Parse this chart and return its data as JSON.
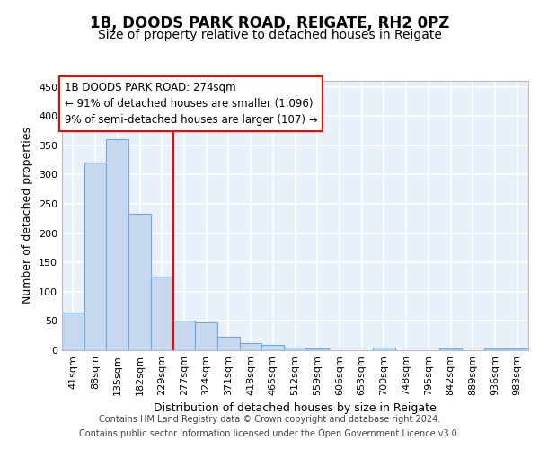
{
  "title_line1": "1B, DOODS PARK ROAD, REIGATE, RH2 0PZ",
  "title_line2": "Size of property relative to detached houses in Reigate",
  "xlabel": "Distribution of detached houses by size in Reigate",
  "ylabel": "Number of detached properties",
  "categories": [
    "41sqm",
    "88sqm",
    "135sqm",
    "182sqm",
    "229sqm",
    "277sqm",
    "324sqm",
    "371sqm",
    "418sqm",
    "465sqm",
    "512sqm",
    "559sqm",
    "606sqm",
    "653sqm",
    "700sqm",
    "748sqm",
    "795sqm",
    "842sqm",
    "889sqm",
    "936sqm",
    "983sqm"
  ],
  "values": [
    65,
    320,
    360,
    233,
    125,
    50,
    48,
    23,
    13,
    9,
    5,
    3,
    0,
    0,
    4,
    0,
    0,
    3,
    0,
    3,
    3
  ],
  "bar_color": "#c5d8ee",
  "bar_edge_color": "#6aaae0",
  "annotation_text_line1": "1B DOODS PARK ROAD: 274sqm",
  "annotation_text_line2": "← 91% of detached houses are smaller (1,096)",
  "annotation_text_line3": "9% of semi-detached houses are larger (107) →",
  "property_bar_index": 5,
  "ylim_max": 460,
  "yticks": [
    0,
    50,
    100,
    150,
    200,
    250,
    300,
    350,
    400,
    450
  ],
  "footer_line1": "Contains HM Land Registry data © Crown copyright and database right 2024.",
  "footer_line2": "Contains public sector information licensed under the Open Government Licence v3.0.",
  "fig_bg_color": "#ffffff",
  "plot_bg_color": "#e8f0fa",
  "grid_color": "#ffffff",
  "title_fontsize": 12,
  "subtitle_fontsize": 10,
  "axis_label_fontsize": 9,
  "tick_fontsize": 8,
  "annotation_fontsize": 8.5,
  "footer_fontsize": 7
}
